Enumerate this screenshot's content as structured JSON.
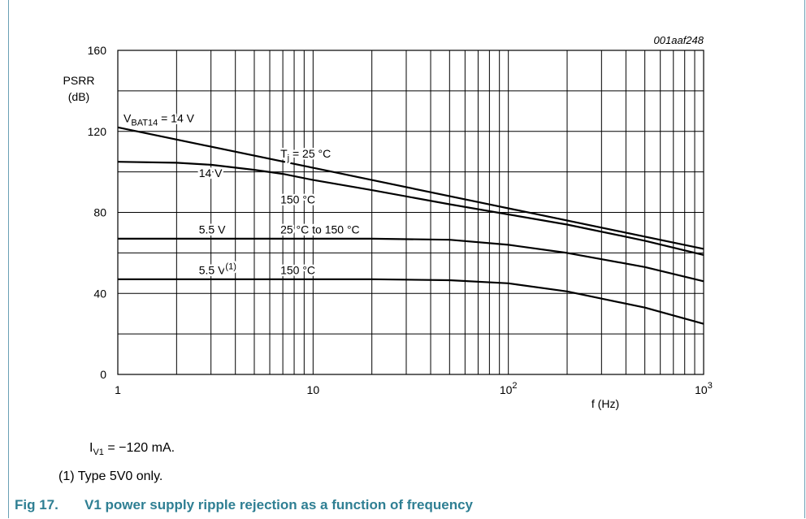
{
  "chart_data": {
    "type": "line",
    "code": "001aaf248",
    "xscale": "log",
    "xlim": [
      1,
      1000
    ],
    "ylim": [
      0,
      160
    ],
    "grid": true,
    "xticks": [
      {
        "v": 1,
        "base": "1",
        "exp": ""
      },
      {
        "v": 10,
        "base": "10",
        "exp": ""
      },
      {
        "v": 100,
        "base": "10",
        "exp": "2"
      },
      {
        "v": 1000,
        "base": "10",
        "exp": "3"
      }
    ],
    "yticks": [
      0,
      40,
      80,
      120,
      160
    ],
    "ylabel_line1": "PSRR",
    "ylabel_line2": "(dB)",
    "xlabel": "f (Hz)",
    "series": [
      {
        "x": [
          1,
          10,
          100,
          1000
        ],
        "y": [
          122,
          102,
          82,
          62
        ]
      },
      {
        "x": [
          1,
          2,
          3,
          5,
          7,
          10,
          20,
          50,
          100,
          200,
          500,
          1000
        ],
        "y": [
          105,
          104.5,
          103.5,
          101,
          99,
          96,
          91,
          84,
          79,
          74,
          66,
          59
        ]
      },
      {
        "x": [
          1,
          5,
          10,
          20,
          50,
          100,
          200,
          500,
          1000
        ],
        "y": [
          67,
          67,
          67,
          67,
          66.5,
          64,
          60,
          53,
          46
        ]
      },
      {
        "x": [
          1,
          5,
          10,
          20,
          50,
          100,
          200,
          500,
          1000
        ],
        "y": [
          47,
          47,
          47,
          47,
          46.5,
          45,
          41,
          33,
          25
        ]
      }
    ],
    "annotations": [
      {
        "id": "vbat",
        "main": "V",
        "sub": "BAT14",
        "rest": " = 14 V",
        "x": 1.07,
        "y": 124.5
      },
      {
        "id": "tj",
        "main": "T",
        "sub": "j",
        "rest": " = 25 °C",
        "x": 6.8,
        "y": 107
      },
      {
        "id": "v14",
        "main": "14 V",
        "sub": "",
        "rest": "",
        "x": 2.6,
        "y": 97.5
      },
      {
        "id": "t150a",
        "main": "150 °C",
        "sub": "",
        "rest": "",
        "x": 6.8,
        "y": 84.5
      },
      {
        "id": "v55",
        "main": "5.5 V",
        "sub": "",
        "rest": "",
        "x": 2.6,
        "y": 69.5
      },
      {
        "id": "t25to150",
        "main": "25 °C to 150 °C",
        "sub": "",
        "rest": "",
        "x": 6.8,
        "y": 69.5
      },
      {
        "id": "v55n",
        "main": "5.5 V",
        "sup": "(1)",
        "rest": "",
        "x": 2.6,
        "y": 49.5
      },
      {
        "id": "t150b",
        "main": "150 °C",
        "sub": "",
        "rest": "",
        "x": 6.8,
        "y": 49.5
      }
    ]
  },
  "notes": {
    "cond_main": "I",
    "cond_sub": "V1",
    "cond_rest": " = −120 mA.",
    "footnote": "(1)  Type 5V0 only."
  },
  "caption": {
    "number": "Fig 17.",
    "title": "V1 power supply ripple rejection as a function of frequency"
  }
}
